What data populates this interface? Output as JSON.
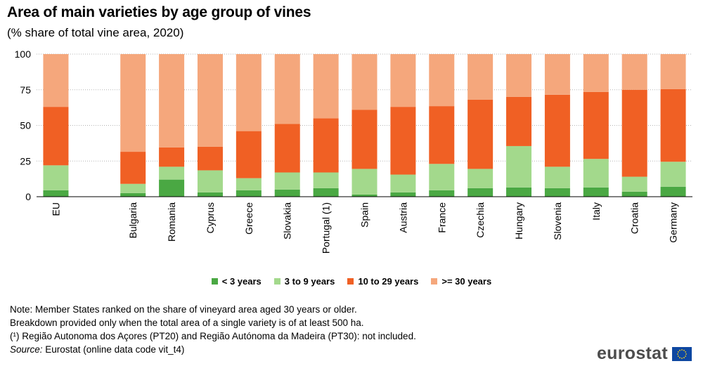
{
  "chart_data": {
    "type": "bar",
    "stacked": true,
    "title": "Area of main varieties by age group of vines",
    "subtitle": "(% share of total vine area, 2020)",
    "ylim": [
      0,
      100
    ],
    "yticks": [
      0,
      25,
      50,
      75,
      100
    ],
    "grid": true,
    "legend": "bottom",
    "categories": [
      "EU",
      "",
      "Bulgaria",
      "Romania",
      "Cyprus",
      "Greece",
      "Slovakia",
      "Portugal (1)",
      "Spain",
      "Austria",
      "France",
      "Czechia",
      "Hungary",
      "Slovenia",
      "Italy",
      "Croatia",
      "Germany"
    ],
    "series": [
      {
        "name": "< 3 years",
        "color": "#4aa843",
        "values": [
          4.5,
          null,
          2.5,
          12,
          3,
          4.5,
          5,
          6,
          1.5,
          3,
          4.5,
          6,
          6.5,
          6,
          6.5,
          3.5,
          7
        ]
      },
      {
        "name": "3 to 9 years",
        "color": "#a3d98c",
        "values": [
          17.5,
          null,
          6.5,
          9,
          15.5,
          8.5,
          12,
          11,
          18,
          12.5,
          18.5,
          13.5,
          29,
          15,
          20,
          10.5,
          17.5
        ]
      },
      {
        "name": "10 to 29 years",
        "color": "#f06024",
        "values": [
          41,
          null,
          22.5,
          13.5,
          16.5,
          33,
          34,
          38,
          41.5,
          47.5,
          40.5,
          48.5,
          34.5,
          50.5,
          47,
          61,
          51
        ]
      },
      {
        "name": ">= 30 years",
        "color": "#f5a77c",
        "values": [
          37,
          null,
          68.5,
          65.5,
          65,
          54,
          49,
          45,
          39,
          37,
          36.5,
          32,
          30,
          28.5,
          26.5,
          25,
          24.5
        ]
      }
    ]
  },
  "notes": {
    "line1": "Note: Member States ranked on the share of vineyard area aged 30 years or older.",
    "line2": "Breakdown provided only when the total area of a single variety is of at least 500 ha.",
    "line3": "(¹)  Região Autonoma dos Açores (PT20) and Região Autónoma da Madeira (PT30): not included.",
    "source_label": "Source:",
    "source_text": " Eurostat (online data code vit_t4)"
  },
  "logo": {
    "text": "eurostat"
  }
}
